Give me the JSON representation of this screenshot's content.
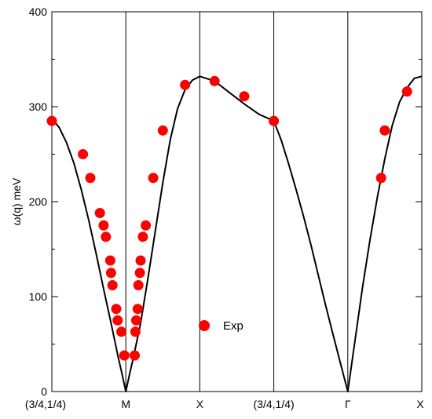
{
  "chart_data": {
    "type": "scatter",
    "title": "",
    "xlabel": "",
    "ylabel": "ω(q) meV",
    "ylim": [
      0,
      400
    ],
    "y_ticks": [
      "0",
      "100",
      "200",
      "300",
      "400"
    ],
    "x_tick_labels": [
      "(3/4,1/4)",
      "M",
      "X",
      "(3/4,1/4)",
      "Γ",
      "X"
    ],
    "x_ticks_at": [
      0,
      1,
      2,
      3,
      4,
      5
    ],
    "xlim": [
      0,
      5
    ],
    "grid": false,
    "legend": {
      "position": "bottom-center",
      "entries": [
        "Exp"
      ]
    },
    "series": [
      {
        "name": "",
        "kind": "line",
        "color": "#000000",
        "x": [
          0,
          0.05,
          0.1,
          0.2,
          0.3,
          0.4,
          0.5,
          0.6,
          0.7,
          0.8,
          0.9,
          0.95,
          1.0,
          1.05,
          1.1,
          1.2,
          1.3,
          1.4,
          1.5,
          1.6,
          1.7,
          1.8,
          1.9,
          2.0,
          2.2,
          2.4,
          2.6,
          2.8,
          3.0,
          3.1,
          3.2,
          3.3,
          3.4,
          3.5,
          3.6,
          3.7,
          3.8,
          3.9,
          4.0,
          4.1,
          4.2,
          4.3,
          4.4,
          4.5,
          4.6,
          4.7,
          4.8,
          4.9,
          5.0
        ],
        "y": [
          285,
          283,
          278,
          262,
          240,
          212,
          180,
          145,
          108,
          72,
          35,
          18,
          0,
          18,
          35,
          72,
          120,
          170,
          220,
          265,
          298,
          318,
          328,
          332,
          327,
          315,
          303,
          292,
          285,
          265,
          240,
          213,
          185,
          155,
          123,
          91,
          60,
          30,
          0,
          55,
          110,
          160,
          205,
          245,
          280,
          305,
          320,
          330,
          332
        ]
      },
      {
        "name": "Exp",
        "kind": "scatter",
        "color": "#ff0000",
        "x": [
          0.0,
          0.42,
          0.52,
          0.65,
          0.7,
          0.73,
          0.79,
          0.8,
          0.82,
          0.87,
          0.89,
          0.94,
          0.98,
          1.12,
          1.13,
          1.14,
          1.16,
          1.17,
          1.19,
          1.2,
          1.23,
          1.27,
          1.37,
          1.5,
          1.8,
          2.2,
          2.6,
          3.0,
          4.45,
          4.5,
          4.8
        ],
        "y": [
          285,
          250,
          225,
          188,
          175,
          163,
          138,
          125,
          112,
          87,
          75,
          63,
          38,
          38,
          63,
          75,
          87,
          112,
          125,
          138,
          163,
          175,
          225,
          275,
          323,
          327,
          311,
          285,
          225,
          275,
          316
        ]
      }
    ]
  }
}
